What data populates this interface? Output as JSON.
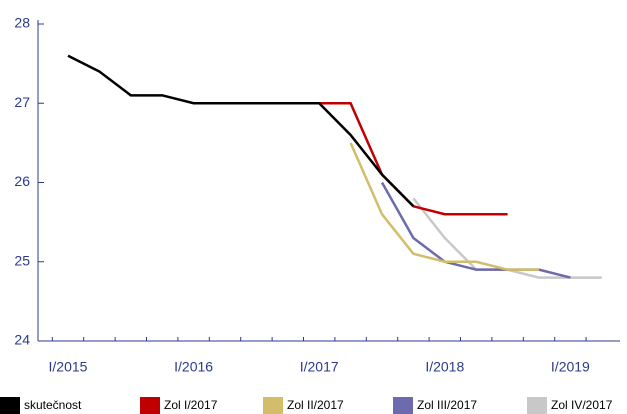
{
  "chart_data": {
    "type": "line",
    "categories": [
      "I/2015",
      null,
      null,
      null,
      "I/2016",
      null,
      null,
      null,
      "I/2017",
      null,
      null,
      null,
      "I/2018",
      null,
      null,
      null,
      "I/2019",
      null
    ],
    "series": [
      {
        "name": "skutečnost",
        "color": "#000000",
        "values": [
          27.6,
          27.4,
          27.1,
          27.1,
          27.0,
          27.0,
          27.0,
          27.0,
          27.0,
          26.6,
          26.1,
          25.7,
          null,
          null,
          null,
          null,
          null,
          null
        ]
      },
      {
        "name": "Zol I/2017",
        "color": "#c00000",
        "values": [
          null,
          null,
          null,
          null,
          null,
          null,
          null,
          null,
          27.0,
          27.0,
          26.1,
          25.7,
          25.6,
          25.6,
          25.6,
          null,
          null,
          null
        ]
      },
      {
        "name": "Zol II/2017",
        "color": "#d4bd6a",
        "values": [
          null,
          null,
          null,
          null,
          null,
          null,
          null,
          null,
          null,
          26.5,
          25.6,
          25.1,
          25.0,
          25.0,
          24.9,
          24.9,
          null,
          null
        ]
      },
      {
        "name": "Zol III/2017",
        "color": "#6e6aae",
        "values": [
          null,
          null,
          null,
          null,
          null,
          null,
          null,
          null,
          null,
          null,
          26.0,
          25.3,
          25.0,
          24.9,
          24.9,
          24.9,
          24.8,
          null
        ]
      },
      {
        "name": "Zol IV/2017",
        "color": "#c8c8c8",
        "values": [
          null,
          null,
          null,
          null,
          null,
          null,
          null,
          null,
          null,
          null,
          null,
          25.8,
          25.3,
          24.9,
          24.9,
          24.8,
          24.8,
          24.8
        ]
      }
    ],
    "ylim": [
      24,
      28
    ],
    "yticks": [
      24,
      25,
      26,
      27,
      28
    ]
  }
}
